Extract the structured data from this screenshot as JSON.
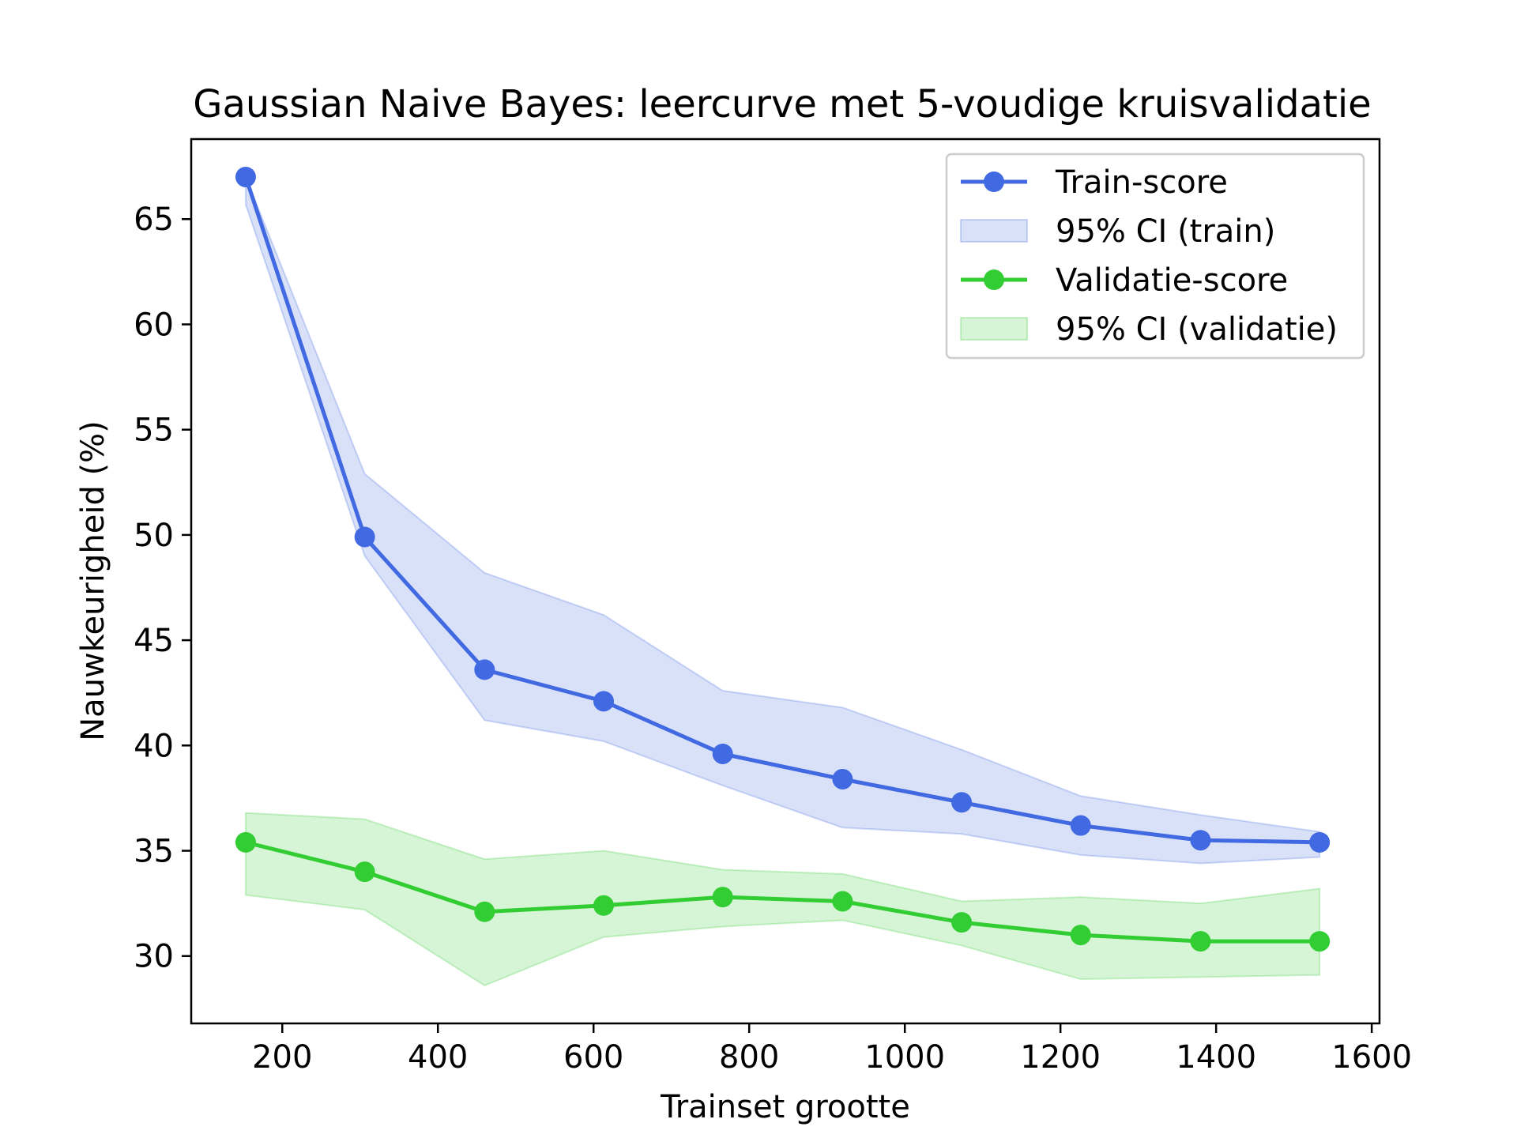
{
  "chart_data": {
    "type": "line",
    "title": "Gaussian Naive Bayes: leercurve met 5-voudige kruisvalidatie",
    "xlabel": "Trainset grootte",
    "ylabel": "Nauwkeurigheid (%)",
    "xlim": [
      83,
      1610
    ],
    "ylim": [
      26.8,
      68.8
    ],
    "xticks": [
      200,
      400,
      600,
      800,
      1000,
      1200,
      1400,
      1600
    ],
    "yticks": [
      30,
      35,
      40,
      45,
      50,
      55,
      60,
      65
    ],
    "x": [
      153,
      306,
      460,
      613,
      766,
      920,
      1073,
      1226,
      1380,
      1533
    ],
    "legend_position": "top-right",
    "grid": false,
    "series": [
      {
        "name": "Train-score",
        "color": "#4169e1",
        "values": [
          67.0,
          49.9,
          43.6,
          42.1,
          39.6,
          38.4,
          37.3,
          36.2,
          35.5,
          35.4
        ],
        "ci_lower": [
          65.7,
          49.0,
          41.2,
          40.2,
          38.1,
          36.1,
          35.8,
          34.8,
          34.4,
          34.7
        ],
        "ci_upper": [
          67.0,
          52.9,
          48.2,
          46.2,
          42.6,
          41.8,
          39.8,
          37.6,
          36.7,
          35.9
        ]
      },
      {
        "name": "Validatie-score",
        "color": "#32cd32",
        "values": [
          35.4,
          34.0,
          32.1,
          32.4,
          32.8,
          32.6,
          31.6,
          31.0,
          30.7,
          30.7
        ],
        "ci_lower": [
          32.9,
          32.2,
          28.6,
          30.9,
          31.4,
          31.7,
          30.5,
          28.9,
          29.0,
          29.1
        ],
        "ci_upper": [
          36.8,
          36.5,
          34.6,
          35.0,
          34.1,
          33.9,
          32.6,
          32.8,
          32.5,
          33.2
        ]
      }
    ],
    "legend": [
      {
        "label": "Train-score",
        "kind": "line",
        "color": "#4169e1"
      },
      {
        "label": "95% CI (train)",
        "kind": "patch",
        "color": "#4169e1"
      },
      {
        "label": "Validatie-score",
        "kind": "line",
        "color": "#32cd32"
      },
      {
        "label": "95% CI (validatie)",
        "kind": "patch",
        "color": "#32cd32"
      }
    ]
  }
}
